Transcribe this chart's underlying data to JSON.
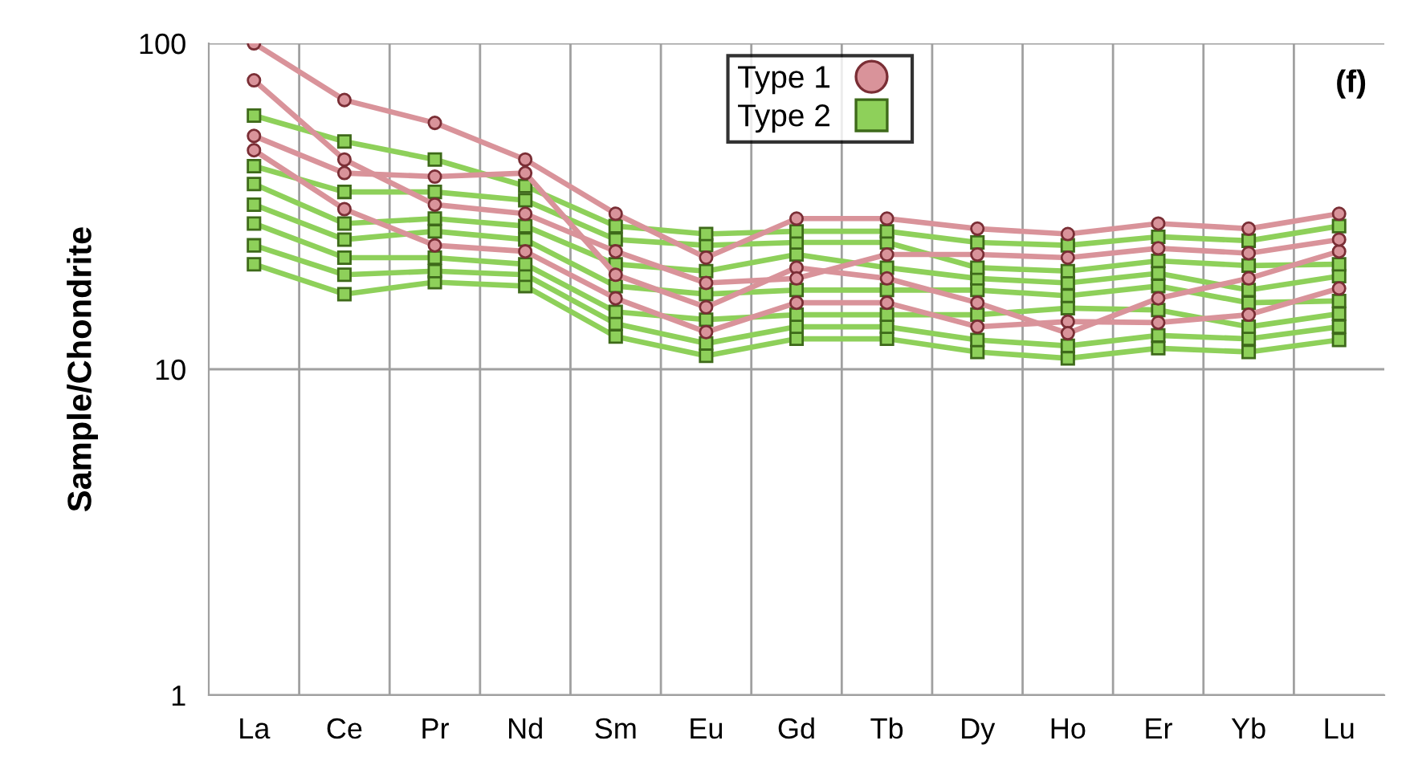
{
  "chart_data": {
    "type": "line",
    "ylabel": "Sample/Chondrite",
    "annotations": [
      "(f)"
    ],
    "categories": [
      "La",
      "Ce",
      "Pr",
      "Nd",
      "Sm",
      "Eu",
      "Gd",
      "Tb",
      "Dy",
      "Ho",
      "Er",
      "Yb",
      "Lu"
    ],
    "log": true,
    "ylim": [
      1,
      100
    ],
    "yticks": [
      1,
      10,
      100
    ],
    "grid": true,
    "legend": "top",
    "series": [
      {
        "name": "Type 1",
        "color": "#d9939a",
        "marker": "circle",
        "values": [
          100,
          67,
          57,
          44,
          30,
          22,
          29,
          29,
          27,
          26,
          28,
          27,
          30
        ]
      },
      {
        "color": "#d9939a",
        "marker": "circle",
        "values": [
          77,
          44,
          32,
          30,
          23,
          18.4,
          19,
          22.5,
          22.5,
          22,
          23.5,
          22.7,
          25
        ]
      },
      {
        "color": "#d9939a",
        "marker": "circle",
        "values": [
          52,
          40,
          39,
          40,
          19.5,
          15.5,
          20.5,
          19,
          16,
          12.9,
          16.5,
          19,
          23
        ]
      },
      {
        "color": "#d9939a",
        "marker": "circle",
        "values": [
          47,
          31,
          24,
          23,
          16.5,
          13,
          16,
          16,
          13.5,
          14,
          13.9,
          14.7,
          17.7
        ]
      },
      {
        "name": "Type 2",
        "color": "#8ed05a",
        "marker": "square",
        "values": [
          60,
          50,
          44,
          36.5,
          27.5,
          26,
          26.5,
          26.5,
          24.5,
          24,
          25.5,
          24.8,
          27.5
        ]
      },
      {
        "color": "#8ed05a",
        "marker": "square",
        "values": [
          42,
          35,
          35,
          33,
          25,
          24,
          24.5,
          24.5,
          20.5,
          20,
          21.5,
          20.8,
          21
        ]
      },
      {
        "color": "#8ed05a",
        "marker": "square",
        "values": [
          37,
          28,
          29,
          27.5,
          21,
          20,
          22.5,
          20.5,
          19,
          18.4,
          19.7,
          17.5,
          19.3
        ]
      },
      {
        "color": "#8ed05a",
        "marker": "square",
        "values": [
          32,
          25,
          26.5,
          25,
          18,
          17,
          17.5,
          17.5,
          17.5,
          16.8,
          18,
          16,
          16.2
        ]
      },
      {
        "color": "#8ed05a",
        "marker": "square",
        "values": [
          28,
          22,
          22,
          21,
          15,
          14.2,
          14.7,
          14.7,
          14.7,
          15.4,
          15.2,
          13.5,
          14.8
        ]
      },
      {
        "color": "#8ed05a",
        "marker": "square",
        "values": [
          24,
          19.5,
          20,
          19.5,
          13.8,
          12,
          13.5,
          13.5,
          12.3,
          11.8,
          12.7,
          12.4,
          13.5
        ]
      },
      {
        "color": "#8ed05a",
        "marker": "square",
        "values": [
          21,
          17,
          18.5,
          18,
          12.6,
          11,
          12.4,
          12.4,
          11.3,
          10.8,
          11.6,
          11.3,
          12.3
        ]
      }
    ]
  }
}
